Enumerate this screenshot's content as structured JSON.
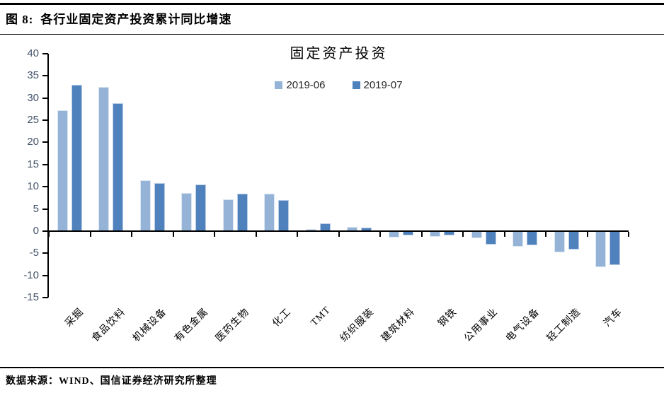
{
  "figure": {
    "label": "图 8:",
    "title": "各行业固定资产投资累计同比增速",
    "source": "数据来源：WIND、国信证券经济研究所整理"
  },
  "chart_data": {
    "type": "bar",
    "title": "固定资产投资",
    "categories": [
      "采掘",
      "食品饮料",
      "机械设备",
      "有色金属",
      "医药生物",
      "化工",
      "TMT",
      "纺织服装",
      "建筑材料",
      "钢铁",
      "公用事业",
      "电气设备",
      "轻工制造",
      "汽车"
    ],
    "series": [
      {
        "name": "2019-06",
        "color": "#95B3D7",
        "border": "#DCE6F2",
        "values": [
          27.2,
          32.5,
          11.5,
          8.6,
          7.2,
          8.5,
          0.4,
          1.0,
          -1.5,
          -1.3,
          -1.6,
          -3.5,
          -4.8,
          -8.2
        ]
      },
      {
        "name": "2019-07",
        "color": "#4F81BD",
        "border": "#B9CDE5",
        "values": [
          33.0,
          28.8,
          10.9,
          10.5,
          8.4,
          7.0,
          1.8,
          0.8,
          -1.0,
          -0.9,
          -3.1,
          -3.2,
          -4.1,
          -7.7
        ]
      }
    ],
    "ylabel": "",
    "xlabel": "",
    "ylim": [
      -15,
      40
    ],
    "ytick_step": 5,
    "yticks": [
      40,
      35,
      30,
      25,
      20,
      15,
      10,
      5,
      0,
      -5,
      -10,
      -15
    ],
    "legend_position": "top-center",
    "grid": false,
    "axis_color": "#000000",
    "ytick_label_color": "#44546A"
  }
}
